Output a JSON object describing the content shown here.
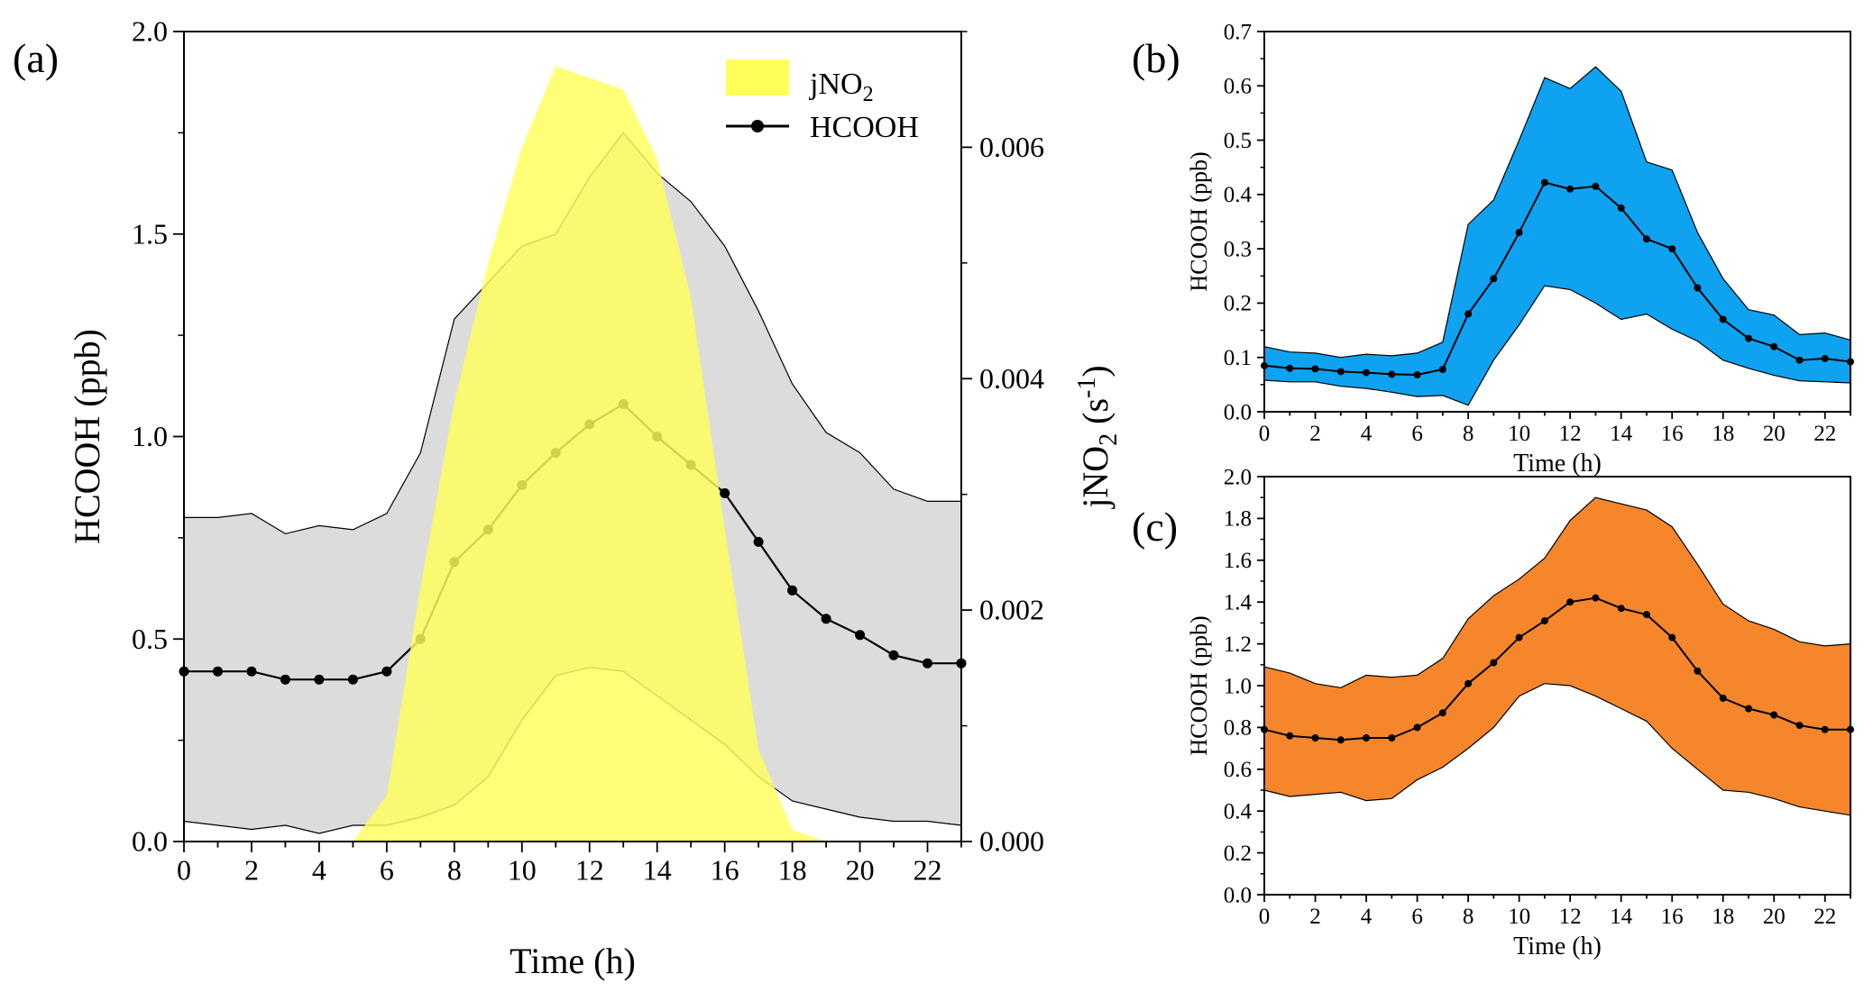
{
  "chart_data": [
    {
      "panel": "(a)",
      "type": "area",
      "xlabel": "Time (h)",
      "ylabel": "HCOOH (ppb)",
      "y2label": "jNO",
      "y2label_sub": "2",
      "y2label_units_open": " (s",
      "y2label_units_exp": "-1",
      "y2label_units_close": ")",
      "xlim": [
        0,
        23
      ],
      "ylim": [
        0,
        2.0
      ],
      "y2lim": [
        0,
        0.007
      ],
      "xticks": [
        0,
        2,
        4,
        6,
        8,
        10,
        12,
        14,
        16,
        18,
        20,
        22
      ],
      "yticks": [
        "0.0",
        "0.5",
        "1.0",
        "1.5",
        "2.0"
      ],
      "y2ticks": [
        "0.000",
        "0.002",
        "0.004",
        "0.006"
      ],
      "legend": {
        "position": "top-right",
        "entries": [
          {
            "label": "jNO",
            "sub": "2",
            "kind": "area"
          },
          {
            "label": "HCOOH",
            "kind": "line"
          }
        ]
      },
      "x": [
        0,
        1,
        2,
        3,
        4,
        5,
        6,
        7,
        8,
        9,
        10,
        11,
        12,
        13,
        14,
        15,
        16,
        17,
        18,
        19,
        20,
        21,
        22,
        23
      ],
      "series": [
        {
          "name": "HCOOH",
          "values": [
            0.42,
            0.42,
            0.42,
            0.4,
            0.4,
            0.4,
            0.42,
            0.5,
            0.69,
            0.77,
            0.88,
            0.96,
            1.03,
            1.08,
            1.0,
            0.93,
            0.86,
            0.74,
            0.62,
            0.55,
            0.51,
            0.46,
            0.44,
            0.44
          ]
        },
        {
          "name": "HCOOH upper",
          "values": [
            0.8,
            0.8,
            0.81,
            0.76,
            0.78,
            0.77,
            0.81,
            0.96,
            1.29,
            1.38,
            1.47,
            1.5,
            1.64,
            1.75,
            1.65,
            1.58,
            1.47,
            1.31,
            1.13,
            1.01,
            0.96,
            0.87,
            0.84,
            0.84
          ]
        },
        {
          "name": "HCOOH lower",
          "values": [
            0.05,
            0.04,
            0.03,
            0.04,
            0.02,
            0.04,
            0.04,
            0.06,
            0.09,
            0.16,
            0.3,
            0.41,
            0.43,
            0.42,
            0.36,
            0.3,
            0.24,
            0.16,
            0.1,
            0.08,
            0.06,
            0.05,
            0.05,
            0.04
          ]
        },
        {
          "name": "jNO2",
          "values": [
            0,
            0,
            0,
            0,
            0,
            0,
            0.0004,
            0.0022,
            0.0038,
            0.005,
            0.006,
            0.0067,
            0.0066,
            0.0065,
            0.0059,
            0.0047,
            0.0027,
            0.0008,
            0.0001,
            0,
            0,
            0,
            0,
            0
          ]
        }
      ],
      "colors": {
        "band": "#dcdcdc",
        "jNO2": "#ffff5a",
        "line": "#000000"
      }
    },
    {
      "panel": "(b)",
      "type": "area",
      "xlabel": "Time (h)",
      "ylabel": "HCOOH (ppb)",
      "xlim": [
        0,
        23
      ],
      "ylim": [
        0,
        0.7
      ],
      "xticks": [
        0,
        2,
        4,
        6,
        8,
        10,
        12,
        14,
        16,
        18,
        20,
        22
      ],
      "yticks": [
        "0.0",
        "0.1",
        "0.2",
        "0.3",
        "0.4",
        "0.5",
        "0.6",
        "0.7"
      ],
      "x": [
        0,
        1,
        2,
        3,
        4,
        5,
        6,
        7,
        8,
        9,
        10,
        11,
        12,
        13,
        14,
        15,
        16,
        17,
        18,
        19,
        20,
        21,
        22,
        23
      ],
      "series": [
        {
          "name": "HCOOH",
          "values": [
            0.085,
            0.08,
            0.079,
            0.074,
            0.072,
            0.069,
            0.068,
            0.078,
            0.18,
            0.245,
            0.33,
            0.422,
            0.41,
            0.415,
            0.375,
            0.318,
            0.3,
            0.228,
            0.17,
            0.135,
            0.12,
            0.095,
            0.098,
            0.092
          ]
        },
        {
          "name": "HCOOH upper",
          "values": [
            0.12,
            0.11,
            0.108,
            0.1,
            0.106,
            0.103,
            0.108,
            0.128,
            0.345,
            0.39,
            0.5,
            0.615,
            0.595,
            0.635,
            0.59,
            0.46,
            0.445,
            0.33,
            0.245,
            0.188,
            0.178,
            0.142,
            0.145,
            0.132
          ]
        },
        {
          "name": "HCOOH lower",
          "values": [
            0.058,
            0.055,
            0.055,
            0.047,
            0.043,
            0.036,
            0.028,
            0.03,
            0.012,
            0.095,
            0.16,
            0.232,
            0.225,
            0.2,
            0.17,
            0.18,
            0.152,
            0.13,
            0.095,
            0.08,
            0.067,
            0.057,
            0.055,
            0.053
          ]
        }
      ],
      "colors": {
        "band": "#0ea2f0",
        "line": "#000000"
      }
    },
    {
      "panel": "(c)",
      "type": "area",
      "xlabel": "Time (h)",
      "ylabel": "HCOOH (ppb)",
      "xlim": [
        0,
        23
      ],
      "ylim": [
        0,
        2.0
      ],
      "xticks": [
        0,
        2,
        4,
        6,
        8,
        10,
        12,
        14,
        16,
        18,
        20,
        22
      ],
      "yticks": [
        "0.0",
        "0.2",
        "0.4",
        "0.6",
        "0.8",
        "1.0",
        "1.2",
        "1.4",
        "1.6",
        "1.8",
        "2.0"
      ],
      "x": [
        0,
        1,
        2,
        3,
        4,
        5,
        6,
        7,
        8,
        9,
        10,
        11,
        12,
        13,
        14,
        15,
        16,
        17,
        18,
        19,
        20,
        21,
        22,
        23
      ],
      "series": [
        {
          "name": "HCOOH",
          "values": [
            0.79,
            0.76,
            0.75,
            0.74,
            0.75,
            0.75,
            0.8,
            0.87,
            1.01,
            1.11,
            1.23,
            1.31,
            1.4,
            1.42,
            1.37,
            1.34,
            1.23,
            1.07,
            0.94,
            0.89,
            0.86,
            0.81,
            0.79,
            0.79
          ]
        },
        {
          "name": "HCOOH upper",
          "values": [
            1.09,
            1.06,
            1.01,
            0.99,
            1.05,
            1.04,
            1.05,
            1.13,
            1.32,
            1.43,
            1.51,
            1.61,
            1.79,
            1.9,
            1.87,
            1.84,
            1.76,
            1.58,
            1.39,
            1.31,
            1.27,
            1.21,
            1.19,
            1.2
          ]
        },
        {
          "name": "HCOOH lower",
          "values": [
            0.5,
            0.47,
            0.48,
            0.49,
            0.45,
            0.46,
            0.55,
            0.61,
            0.7,
            0.8,
            0.95,
            1.01,
            1.0,
            0.95,
            0.89,
            0.83,
            0.7,
            0.6,
            0.5,
            0.49,
            0.46,
            0.42,
            0.4,
            0.38
          ]
        }
      ],
      "colors": {
        "band": "#f5862c",
        "line": "#000000"
      }
    }
  ]
}
